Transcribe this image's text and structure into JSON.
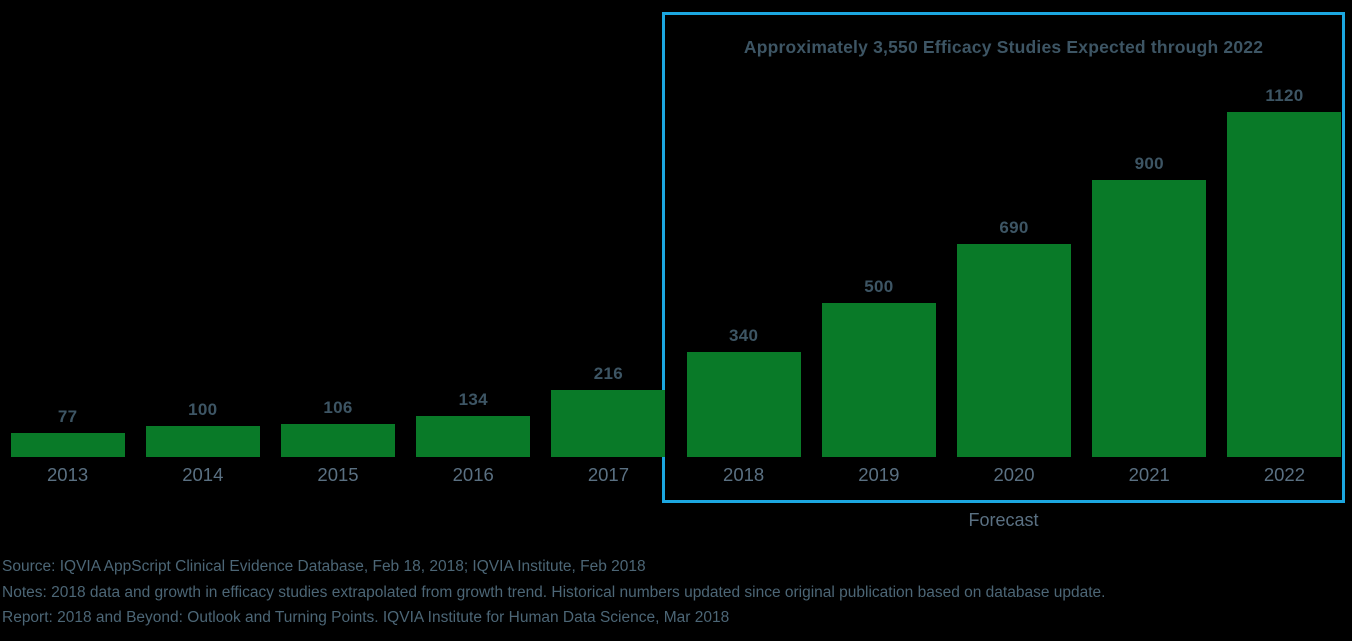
{
  "chart_data": {
    "type": "bar",
    "categories": [
      "2013",
      "2014",
      "2015",
      "2016",
      "2017",
      "2018",
      "2019",
      "2020",
      "2021",
      "2022"
    ],
    "values": [
      77,
      100,
      106,
      134,
      216,
      340,
      500,
      690,
      900,
      1120
    ],
    "title": "",
    "xlabel": "",
    "ylabel": "",
    "ylim": [
      0,
      1190
    ],
    "grid": false,
    "legend": false,
    "data_labels_shown": true,
    "annotation_title": "Approximately 3,550 Efficacy Studies Expected through 2022",
    "forecast_label": "Forecast",
    "forecast_categories": [
      "2018",
      "2019",
      "2020",
      "2021",
      "2022"
    ]
  },
  "footer": {
    "source": "Source: IQVIA AppScript Clinical Evidence Database, Feb 18, 2018; IQVIA Institute, Feb 2018",
    "notes": "Notes: 2018 data and growth in efficacy studies extrapolated from growth trend. Historical numbers updated since original publication based on database update.",
    "report": "Report: 2018 and Beyond: Outlook and Turning Points. IQVIA Institute for Human Data Science, Mar 2018"
  },
  "colors": {
    "background": "#000000",
    "bar_green": "#097A28",
    "forecast_border_blue": "#1CA7E0",
    "title_text": "#3D5564",
    "axis_text": "#5A7082",
    "footer_text": "#4C6676"
  }
}
